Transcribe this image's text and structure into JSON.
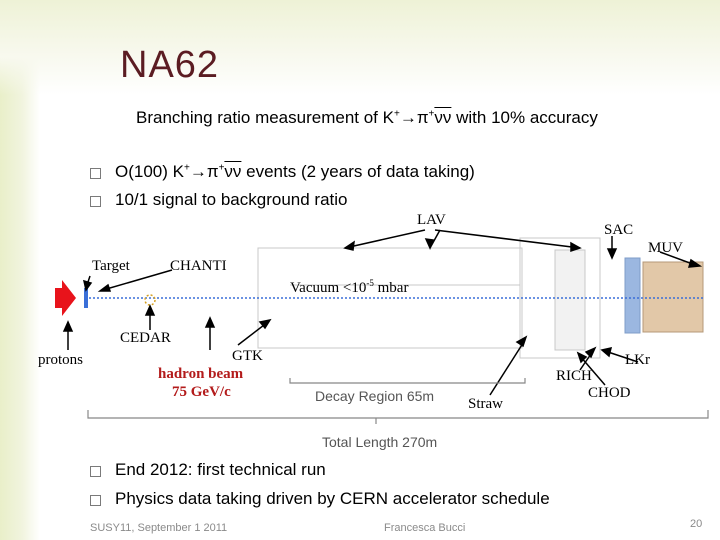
{
  "slide": {
    "title": "NA62",
    "subtitle": {
      "prefix": "Branching ratio measurement of K",
      "sup1": "+",
      "arrow": "→π",
      "sup2": "+",
      "nunu": "νν",
      "suffix": " with 10% accuracy"
    },
    "bullets_top": [
      {
        "pre": "O(100) K",
        "sup1": "+",
        "mid": "→π",
        "sup2": "+",
        "nunu": "νν",
        "post": " events  (2 years of data taking)"
      },
      {
        "pre": "10/1 signal to background ratio"
      }
    ],
    "diagram": {
      "labels": {
        "lav": "LAV",
        "sac": "SAC",
        "muv": "MUV",
        "target": "Target",
        "chanti": "CHANTI",
        "vacuum_pre": "Vacuum <10",
        "vacuum_exp": "-5",
        "vacuum_post": " mbar",
        "cedar": "CEDAR",
        "gtk": "GTK",
        "protons": "protons",
        "hadron_beam_1": "hadron beam",
        "hadron_beam_2": "75 GeV/c",
        "decay_region": "Decay Region 65m",
        "rich": "RICH",
        "lkr": "LKr",
        "chod": "CHOD",
        "straw": "Straw",
        "total_length": "Total Length 270m"
      },
      "colors": {
        "proton_arrow": "#e8131b",
        "beam_line": "#3a6fd8",
        "red_text": "#b31b1b"
      }
    },
    "bullets_bottom": [
      "End 2012: first technical run",
      "Physics data taking driven by CERN accelerator schedule"
    ],
    "footer": {
      "left": "SUSY11, September 1 2011",
      "center": "Francesca Bucci",
      "page": "20"
    }
  }
}
